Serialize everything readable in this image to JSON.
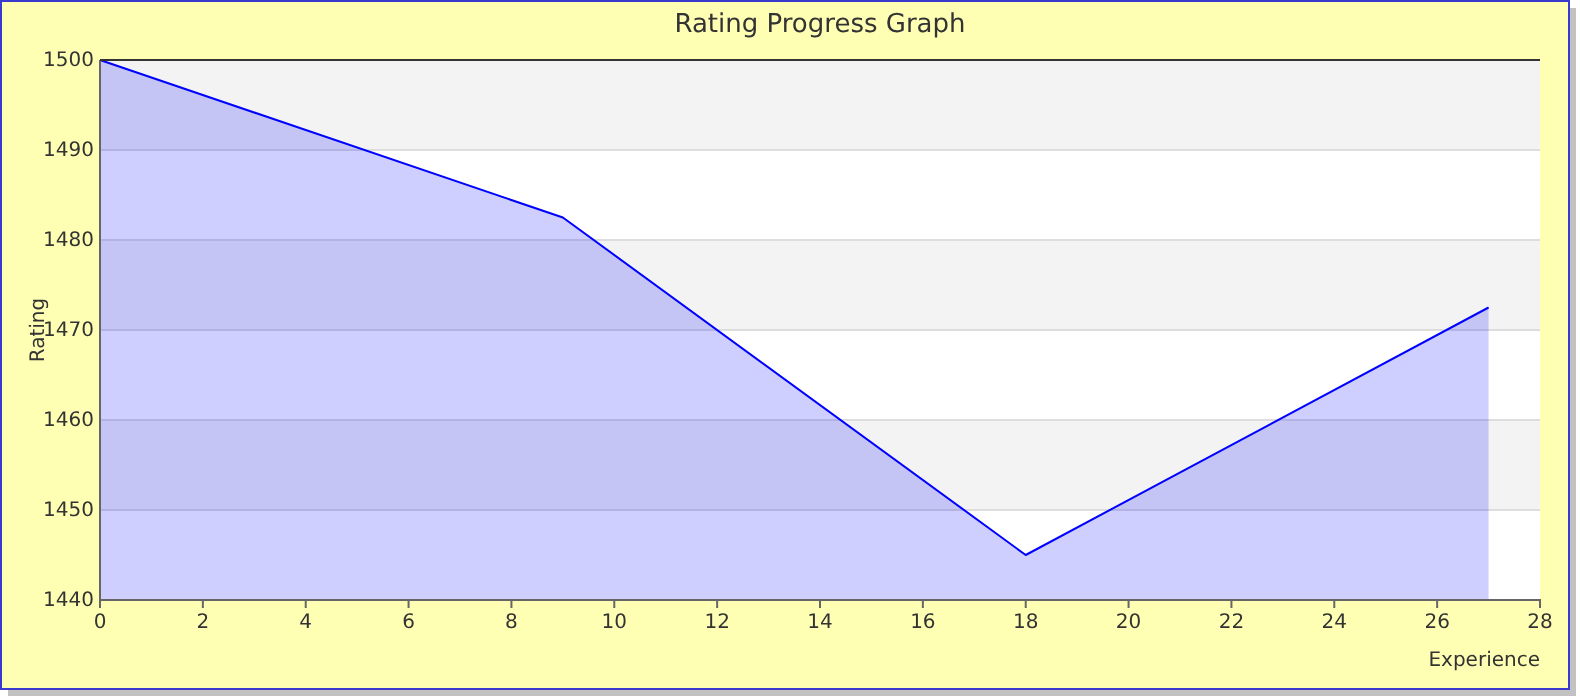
{
  "chart_data": {
    "type": "area",
    "title": "Rating Progress Graph",
    "xlabel": "Experience",
    "ylabel": "Rating",
    "x": [
      0,
      9,
      18,
      27
    ],
    "series": [
      {
        "color": "#0000ff",
        "values": [
          1500,
          1482.5,
          1445,
          1472.5
        ]
      }
    ],
    "xlim": [
      0,
      28
    ],
    "xticks": [
      0,
      2,
      4,
      6,
      8,
      10,
      12,
      14,
      16,
      18,
      20,
      22,
      24,
      26,
      28
    ],
    "ylim": [
      1440,
      1500
    ],
    "yticks": [
      1440,
      1450,
      1460,
      1470,
      1480,
      1490,
      1500
    ],
    "grid": "y",
    "marker": "none",
    "line_style": "solid"
  }
}
